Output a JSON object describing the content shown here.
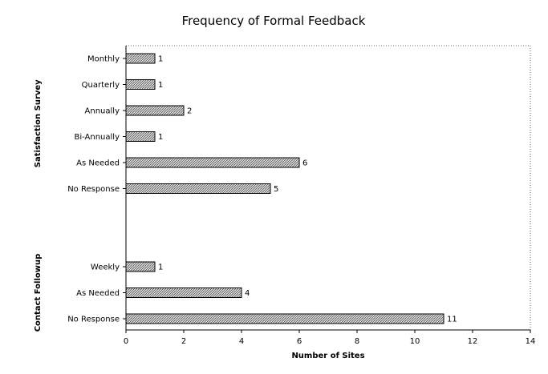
{
  "chart_data": {
    "type": "bar",
    "orientation": "horizontal",
    "title": "Frequency of Formal Feedback",
    "xlabel": "Number of Sites",
    "xlim": [
      0,
      14
    ],
    "xticks": [
      0,
      2,
      4,
      6,
      8,
      10,
      12,
      14
    ],
    "grid": false,
    "groups": [
      {
        "name": "Satisfaction Survey",
        "categories": [
          "Monthly",
          "Quarterly",
          "Annually",
          "Bi-Annually",
          "As Needed",
          "No Response"
        ],
        "values": [
          1,
          1,
          2,
          1,
          6,
          5
        ]
      },
      {
        "name": "Contact Followup",
        "categories": [
          "Weekly",
          "As Needed",
          "No Response"
        ],
        "values": [
          1,
          4,
          11
        ]
      }
    ]
  }
}
